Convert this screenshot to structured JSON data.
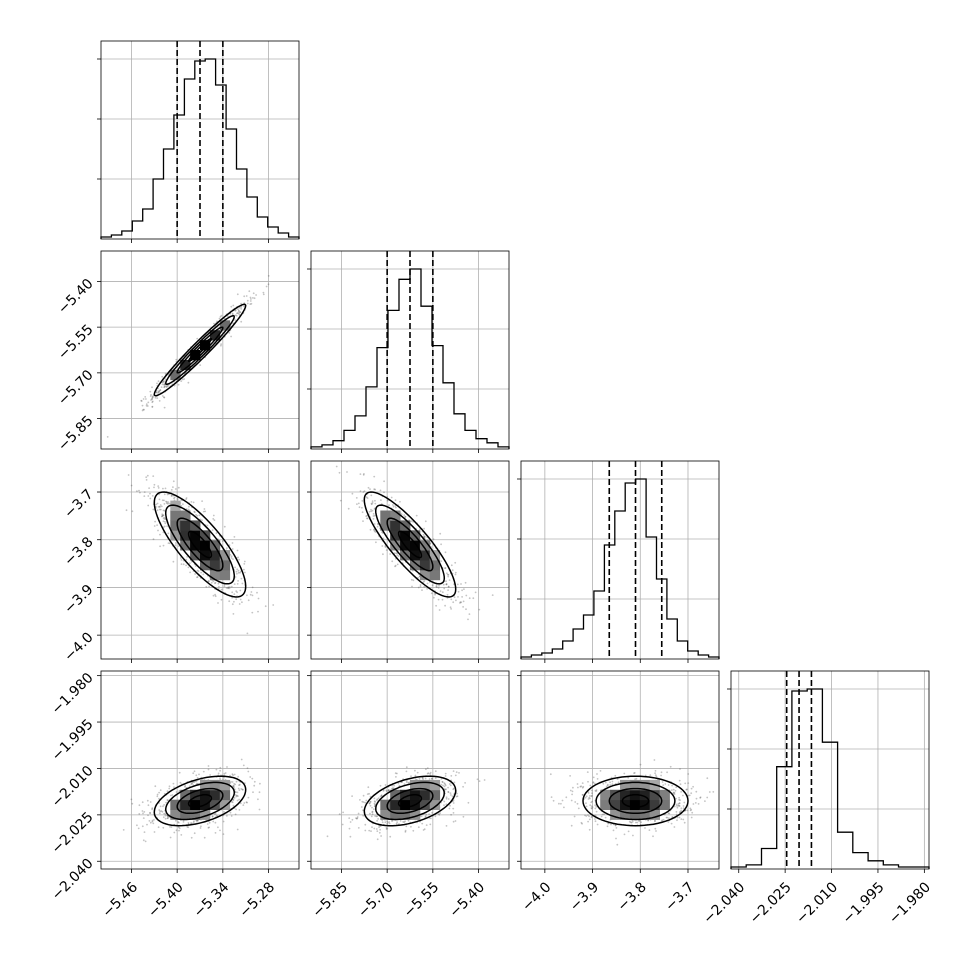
{
  "chart_data": {
    "type": "corner",
    "n_params": 4,
    "grid": true,
    "params": [
      {
        "mean": -5.37,
        "sd": 0.03,
        "range": [
          -5.5,
          -5.24
        ],
        "quantiles": [
          -5.4,
          -5.37,
          -5.34
        ],
        "ticks": [
          -5.46,
          -5.4,
          -5.34,
          -5.28
        ],
        "tick_labels": [
          "−5.46",
          "−5.40",
          "−5.34",
          "−5.28"
        ]
      },
      {
        "mean": -5.625,
        "sd": 0.075,
        "range": [
          -5.95,
          -5.3
        ],
        "quantiles": [
          -5.7,
          -5.625,
          -5.55
        ],
        "ticks": [
          -5.85,
          -5.7,
          -5.55,
          -5.4
        ],
        "tick_labels": [
          "−5.85",
          "−5.70",
          "−5.55",
          "−5.40"
        ]
      },
      {
        "mean": -3.81,
        "sd": 0.055,
        "range": [
          -4.05,
          -3.635
        ],
        "quantiles": [
          -3.865,
          -3.81,
          -3.755
        ],
        "ticks": [
          -4.0,
          -3.9,
          -3.8,
          -3.7
        ],
        "tick_labels": [
          "−4.0",
          "−3.9",
          "−3.8",
          "−3.7"
        ]
      },
      {
        "mean": -2.0205,
        "sd": 0.004,
        "range": [
          -2.0425,
          -1.9785
        ],
        "quantiles": [
          -2.0245,
          -2.0205,
          -2.0165
        ],
        "ticks": [
          -2.04,
          -2.025,
          -2.01,
          -1.995,
          -1.98
        ],
        "tick_labels": [
          "−2.040",
          "−2.025",
          "−2.010",
          "−1.995",
          "−1.980"
        ]
      }
    ],
    "histograms": [
      {
        "param": 0,
        "counts": [
          1,
          2,
          4,
          9,
          15,
          30,
          45,
          62,
          80,
          89,
          90,
          77,
          55,
          35,
          21,
          11,
          6,
          3,
          1
        ]
      },
      {
        "param": 1,
        "counts": [
          1,
          2,
          4,
          9,
          16,
          30,
          49,
          67,
          82,
          87,
          69,
          50,
          32,
          17,
          9,
          5,
          3,
          1
        ]
      },
      {
        "param": 2,
        "counts": [
          1,
          2,
          3,
          5,
          9,
          15,
          22,
          34,
          57,
          74,
          88,
          90,
          61,
          40,
          20,
          9,
          4,
          2,
          1
        ]
      },
      {
        "param": 3,
        "counts": [
          1,
          2,
          10,
          50,
          87,
          88,
          62,
          18,
          8,
          4,
          2,
          1,
          1
        ]
      }
    ],
    "correlations": {
      "1-0": 0.97,
      "2-0": -0.8,
      "2-1": -0.85,
      "3-0": 0.45,
      "3-1": 0.42,
      "3-2": 0.0
    },
    "contour_levels_sigma": [
      0.5,
      1.0,
      1.5,
      2.0
    ]
  }
}
